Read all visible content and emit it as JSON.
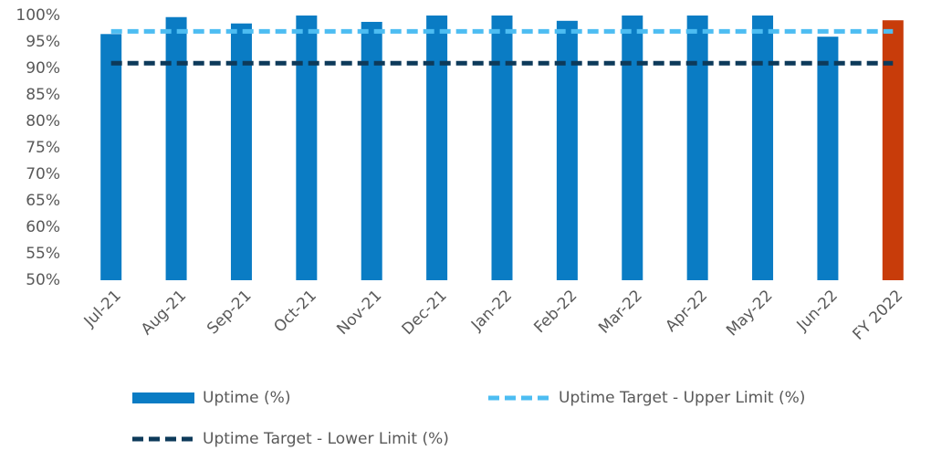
{
  "chart_data": {
    "type": "bar",
    "categories": [
      "Jul-21",
      "Aug-21",
      "Sep-21",
      "Oct-21",
      "Nov-21",
      "Dec-21",
      "Jan-22",
      "Feb-22",
      "Mar-22",
      "Apr-22",
      "May-22",
      "Jun-22",
      "FY 2022"
    ],
    "series": [
      {
        "name": "Uptime (%)",
        "type": "bar",
        "color": "#0a7cc4",
        "colors": [
          "#0a7cc4",
          "#0a7cc4",
          "#0a7cc4",
          "#0a7cc4",
          "#0a7cc4",
          "#0a7cc4",
          "#0a7cc4",
          "#0a7cc4",
          "#0a7cc4",
          "#0a7cc4",
          "#0a7cc4",
          "#0a7cc4",
          "#c83c0a"
        ],
        "values": [
          96.5,
          99.7,
          98.5,
          100,
          98.8,
          100,
          100,
          99,
          100,
          100,
          100,
          96,
          99.1
        ]
      },
      {
        "name": "Uptime Target - Upper Limit (%)",
        "type": "line",
        "color": "#4dbdf2",
        "values": [
          97,
          97,
          97,
          97,
          97,
          97,
          97,
          97,
          97,
          97,
          97,
          97,
          97
        ]
      },
      {
        "name": "Uptime Target - Lower Limit (%)",
        "type": "line",
        "color": "#0d3a5a",
        "values": [
          91,
          91,
          91,
          91,
          91,
          91,
          91,
          91,
          91,
          91,
          91,
          91,
          91
        ]
      }
    ],
    "ylim": [
      50,
      100
    ],
    "yticks": [
      {
        "value": 50,
        "label": "50%"
      },
      {
        "value": 55,
        "label": "55%"
      },
      {
        "value": 60,
        "label": "60%"
      },
      {
        "value": 65,
        "label": "65%"
      },
      {
        "value": 70,
        "label": "70%"
      },
      {
        "value": 75,
        "label": "75%"
      },
      {
        "value": 80,
        "label": "80%"
      },
      {
        "value": 85,
        "label": "85%"
      },
      {
        "value": 90,
        "label": "90%"
      },
      {
        "value": 95,
        "label": "95%"
      },
      {
        "value": 100,
        "label": "100%"
      }
    ],
    "grid": false
  }
}
